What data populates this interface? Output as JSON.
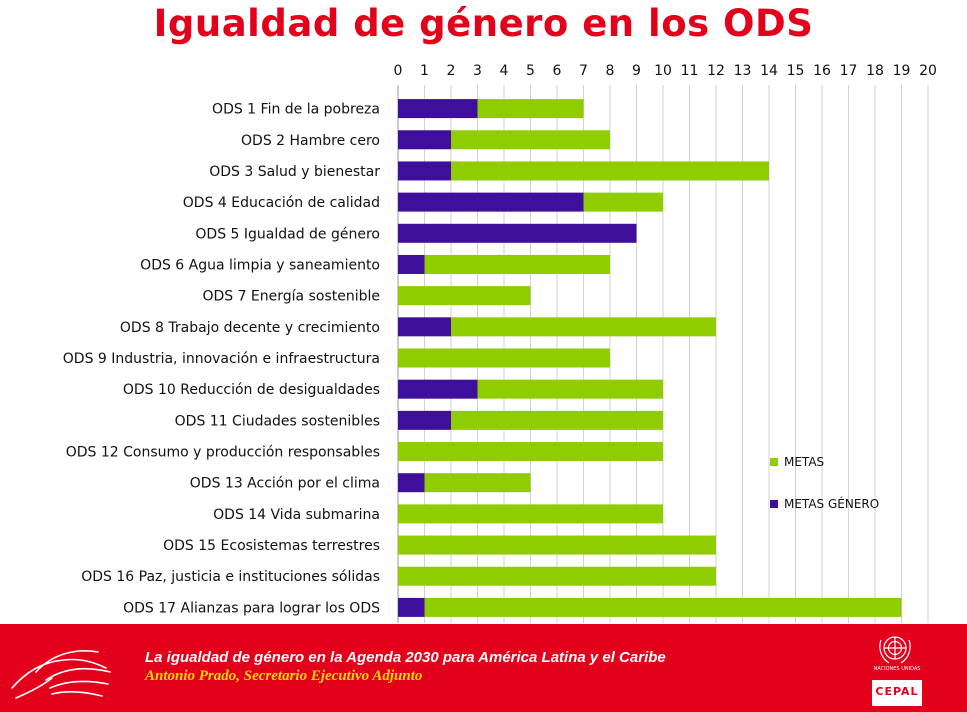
{
  "title": "Igualdad de género en los ODS",
  "colors": {
    "metas": "#8fcd00",
    "metas_genero": "#3f0f9c",
    "brand_red": "#e3001b",
    "grid": "#d2d2d2"
  },
  "chart_data": {
    "type": "bar",
    "orientation": "horizontal",
    "stacked": true,
    "xlim": [
      0,
      20
    ],
    "x_ticks": [
      "0",
      "1",
      "2",
      "3",
      "4",
      "5",
      "6",
      "7",
      "8",
      "9",
      "10",
      "11",
      "12",
      "13",
      "14",
      "15",
      "16",
      "17",
      "18",
      "19",
      "20"
    ],
    "x_axis_position": "top",
    "grid": true,
    "legend_position": "right-middle",
    "categories": [
      "ODS 1 Fin de la pobreza",
      "ODS 2 Hambre cero",
      "ODS 3 Salud y bienestar",
      "ODS 4 Educación de calidad",
      "ODS 5 Igualdad de género",
      "ODS 6 Agua limpia y saneamiento",
      "ODS 7 Energía sostenible",
      "ODS 8 Trabajo decente y crecimiento",
      "ODS 9 Industria, innovación e infraestructura",
      "ODS 10 Reducción de desigualdades",
      "ODS 11 Ciudades sostenibles",
      "ODS 12 Consumo y producción responsables",
      "ODS 13 Acción por el clima",
      "ODS 14 Vida submarina",
      "ODS 15 Ecosistemas terrestres",
      "ODS 16 Paz, justicia e instituciones sólidas",
      "ODS 17 Alianzas para lograr los ODS"
    ],
    "series": [
      {
        "name": "METAS GÉNERO",
        "color": "#3f0f9c",
        "values": [
          3,
          2,
          2,
          7,
          9,
          1,
          0,
          2,
          0,
          3,
          2,
          0,
          1,
          0,
          0,
          0,
          1
        ]
      },
      {
        "name": "METAS",
        "color": "#8fcd00",
        "values": [
          4,
          6,
          12,
          3,
          0,
          7,
          5,
          10,
          8,
          7,
          8,
          10,
          4,
          10,
          12,
          12,
          18
        ]
      }
    ],
    "legend": [
      {
        "label": "METAS",
        "color": "#8fcd00"
      },
      {
        "label": "METAS GÉNERO",
        "color": "#3f0f9c"
      }
    ]
  },
  "footer": {
    "line1": "La igualdad de género en la Agenda 2030 para América Latina y el Caribe",
    "line2": "Antonio Prado, Secretario Ejecutivo Adjunto",
    "org_logo": "CEPAL",
    "un_label": "NACIONES UNIDAS"
  }
}
